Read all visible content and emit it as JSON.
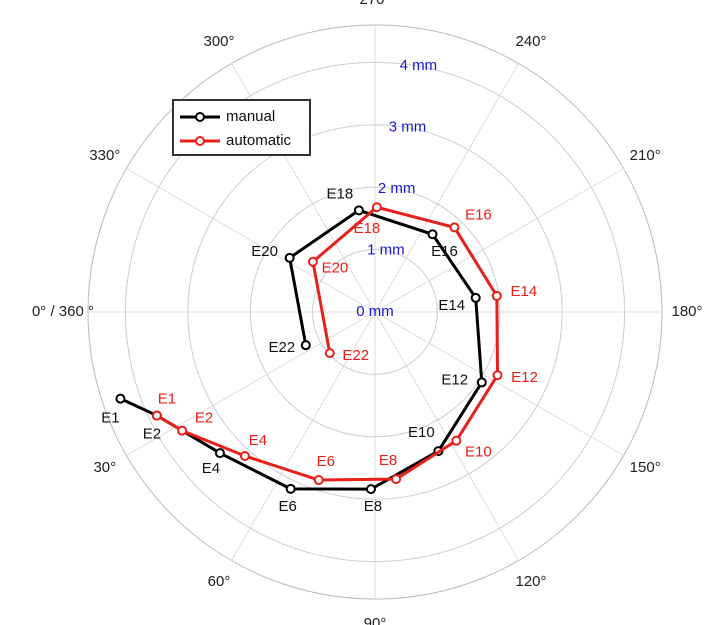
{
  "chart_data": {
    "type": "polar",
    "rlim": [
      0,
      4.6
    ],
    "rticks": [
      {
        "value": 0,
        "label": "0 mm"
      },
      {
        "value": 1,
        "label": "1 mm"
      },
      {
        "value": 2,
        "label": "2 mm"
      },
      {
        "value": 3,
        "label": "3 mm"
      },
      {
        "value": 4,
        "label": "4 mm"
      }
    ],
    "thetaticks": [
      {
        "value": 0,
        "label": "0° / 360 °"
      },
      {
        "value": 30,
        "label": "30°"
      },
      {
        "value": 60,
        "label": "60°"
      },
      {
        "value": 90,
        "label": "90°"
      },
      {
        "value": 120,
        "label": "120°"
      },
      {
        "value": 150,
        "label": "150°"
      },
      {
        "value": 180,
        "label": "180°"
      },
      {
        "value": 210,
        "label": "210°"
      },
      {
        "value": 240,
        "label": "240°"
      },
      {
        "value": 270,
        "label": "270°"
      },
      {
        "value": 300,
        "label": "300°"
      },
      {
        "value": 330,
        "label": "330°"
      }
    ],
    "theta_zero": "left",
    "theta_direction": "clockwise",
    "grid": true,
    "legend": "upper left",
    "series": [
      {
        "name": "manual",
        "color": "#000000",
        "labels": [
          "E1",
          "E2",
          "E4",
          "E6",
          "E8",
          "E10",
          "E12",
          "E14",
          "E16",
          "E18",
          "E20",
          "E22"
        ],
        "theta": [
          18.8,
          25.4,
          42.3,
          64.5,
          88.7,
          114.5,
          146.6,
          188,
          233.5,
          279,
          327.6,
          25.6
        ],
        "values": [
          4.31,
          3.87,
          3.36,
          3.14,
          2.84,
          2.45,
          2.05,
          1.63,
          1.55,
          1.65,
          1.62,
          1.23
        ]
      },
      {
        "name": "automatic",
        "color": "#e8201a",
        "labels": [
          "E1",
          "E2",
          "E4",
          "E6",
          "E8",
          "E10",
          "E12",
          "E14",
          "E16",
          "E18",
          "E20",
          "E22"
        ],
        "theta": [
          25.4,
          31.6,
          47.9,
          71.5,
          97.2,
          122.3,
          152.7,
          187.5,
          226.8,
          269,
          321,
          42.3
        ],
        "values": [
          3.87,
          3.63,
          3.11,
          2.84,
          2.7,
          2.44,
          2.21,
          1.97,
          1.86,
          1.68,
          1.28,
          0.98
        ]
      }
    ]
  }
}
